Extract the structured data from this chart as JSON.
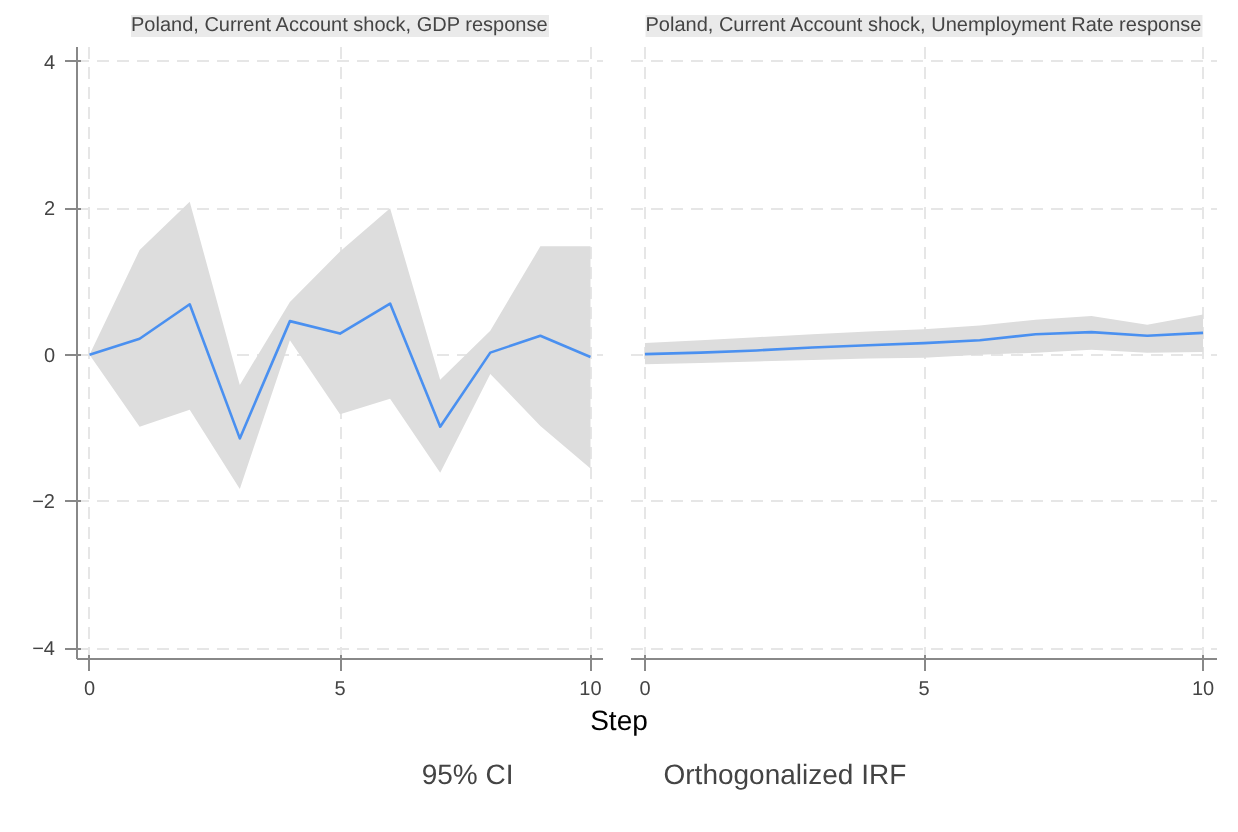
{
  "chart_data": [
    {
      "type": "line",
      "title": "Poland, Current Account shock, GDP response",
      "xlabel": "Step",
      "annotations": [
        "95% CI"
      ],
      "x": [
        0,
        1,
        2,
        3,
        4,
        5,
        6,
        7,
        8,
        9,
        10
      ],
      "series": [
        {
          "name": "Orthogonalized IRF",
          "color": "#4a90f0",
          "values": [
            0,
            0.22,
            0.69,
            -1.14,
            0.46,
            0.29,
            0.7,
            -0.98,
            0.03,
            0.26,
            -0.03
          ],
          "lower": [
            0,
            -0.98,
            -0.75,
            -1.83,
            0.2,
            -0.81,
            -0.6,
            -1.61,
            -0.26,
            -0.97,
            -1.55
          ],
          "upper": [
            0,
            1.43,
            2.09,
            -0.41,
            0.72,
            1.41,
            2.0,
            -0.34,
            0.33,
            1.48,
            1.48
          ]
        }
      ],
      "xlim": [
        -0.25,
        10.25
      ],
      "ylim": [
        -4.15,
        4.2
      ],
      "xticks": [
        0,
        5,
        10
      ],
      "yticks": [
        -4,
        -2,
        0,
        2,
        4
      ],
      "grid": true,
      "legend": "bottom"
    },
    {
      "type": "line",
      "title": "Poland, Current Account shock, Unemployment Rate response",
      "x": [
        0,
        1,
        2,
        3,
        4,
        5,
        6,
        7,
        8,
        9,
        10
      ],
      "series": [
        {
          "color": "#4a90f0",
          "values": [
            0.01,
            0.03,
            0.06,
            0.1,
            0.13,
            0.16,
            0.2,
            0.28,
            0.31,
            0.26,
            0.3
          ],
          "lower": [
            -0.13,
            -0.11,
            -0.09,
            -0.07,
            -0.05,
            -0.04,
            0.0,
            0.03,
            0.07,
            0.03,
            0.04
          ],
          "upper": [
            0.16,
            0.2,
            0.24,
            0.28,
            0.32,
            0.35,
            0.4,
            0.48,
            0.53,
            0.41,
            0.55
          ]
        }
      ],
      "xlim": [
        -0.25,
        10.25
      ],
      "ylim": [
        -4.15,
        4.2
      ],
      "xticks": [
        0,
        5,
        10
      ],
      "yticks": [
        -4,
        -2,
        0,
        2,
        4
      ],
      "grid": true,
      "tick_labels": "x"
    }
  ]
}
